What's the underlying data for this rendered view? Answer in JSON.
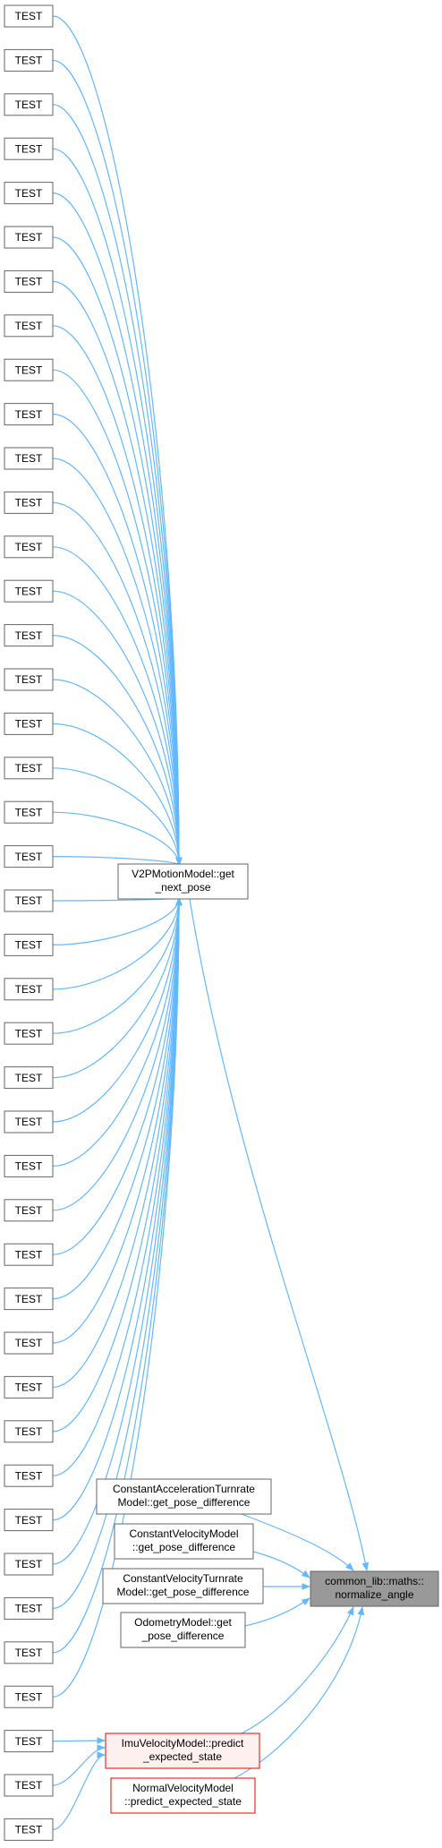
{
  "tests": [
    "TEST",
    "TEST",
    "TEST",
    "TEST",
    "TEST",
    "TEST",
    "TEST",
    "TEST",
    "TEST",
    "TEST",
    "TEST",
    "TEST",
    "TEST",
    "TEST",
    "TEST",
    "TEST",
    "TEST",
    "TEST",
    "TEST",
    "TEST",
    "TEST",
    "TEST",
    "TEST",
    "TEST",
    "TEST",
    "TEST",
    "TEST",
    "TEST",
    "TEST",
    "TEST",
    "TEST",
    "TEST",
    "TEST",
    "TEST",
    "TEST",
    "TEST",
    "TEST",
    "TEST",
    "TEST",
    "TEST",
    "TEST",
    "TEST"
  ],
  "nodes": [
    {
      "lines": [
        "V2PMotionModel::get",
        "_next_pose"
      ]
    },
    {
      "lines": [
        "ConstantAccelerationTurnrate",
        "Model::get_pose_difference"
      ]
    },
    {
      "lines": [
        "ConstantVelocityModel",
        "::get_pose_difference"
      ]
    },
    {
      "lines": [
        "ConstantVelocityTurnrate",
        "Model::get_pose_difference"
      ]
    },
    {
      "lines": [
        "OdometryModel::get",
        "_pose_difference"
      ]
    },
    {
      "lines": [
        "ImuVelocityModel::predict",
        "_expected_state"
      ]
    },
    {
      "lines": [
        "NormalVelocityModel",
        "::predict_expected_state"
      ]
    },
    {
      "lines": [
        "common_lib::maths::",
        "normalize_angle"
      ]
    }
  ]
}
